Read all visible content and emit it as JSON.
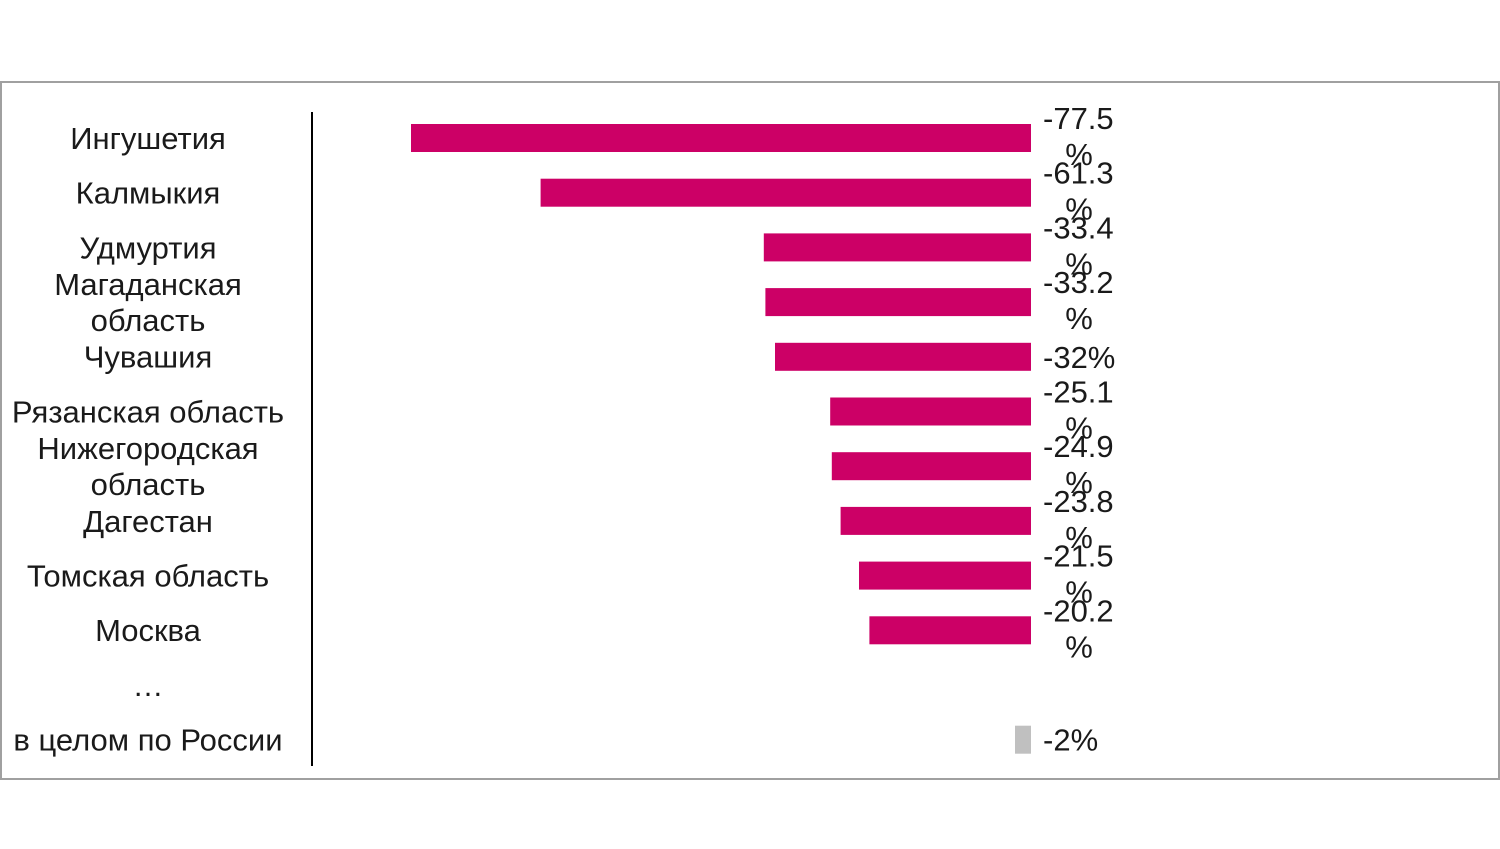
{
  "chart_data": {
    "type": "bar",
    "orientation": "horizontal",
    "categories": [
      "Ингушетия",
      "Калмыкия",
      "Удмуртия",
      "Магаданская область",
      "Чувашия",
      "Рязанская область",
      "Нижегородская область",
      "Дагестан",
      "Томская область",
      "Москва",
      "…",
      "в целом по России"
    ],
    "category_lines": [
      [
        "Ингушетия"
      ],
      [
        "Калмыкия"
      ],
      [
        "Удмуртия"
      ],
      [
        "Магаданская",
        "область"
      ],
      [
        "Чувашия"
      ],
      [
        "Рязанская область"
      ],
      [
        "Нижегородская",
        "область"
      ],
      [
        "Дагестан"
      ],
      [
        "Томская область"
      ],
      [
        "Москва"
      ],
      [
        "…"
      ],
      [
        "в целом по России"
      ]
    ],
    "values": [
      -77.5,
      -61.3,
      -33.4,
      -33.2,
      -32,
      -25.1,
      -24.9,
      -23.8,
      -21.5,
      -20.2,
      null,
      -2
    ],
    "value_labels": [
      [
        "-77.5",
        "%"
      ],
      [
        "-61.3",
        "%"
      ],
      [
        "-33.4",
        "%"
      ],
      [
        "-33.2",
        "%"
      ],
      [
        "-32%"
      ],
      [
        "-25.1",
        "%"
      ],
      [
        "-24.9",
        "%"
      ],
      [
        "-23.8",
        "%"
      ],
      [
        "-21.5",
        "%"
      ],
      [
        "-20.2",
        "%"
      ],
      [],
      [
        "-2%"
      ]
    ],
    "bar_colors": [
      "#cc0066",
      "#cc0066",
      "#cc0066",
      "#cc0066",
      "#cc0066",
      "#cc0066",
      "#cc0066",
      "#cc0066",
      "#cc0066",
      "#cc0066",
      "#cc0066",
      "#c0c0c0"
    ],
    "colors": {
      "bar": "#cc0066",
      "total_bar": "#c0c0c0",
      "border": "#a0a0a0",
      "axis": "#000000"
    },
    "xlim": [
      -90,
      0
    ],
    "grid": false,
    "legend": "none",
    "title": "",
    "xlabel": "",
    "ylabel": ""
  }
}
